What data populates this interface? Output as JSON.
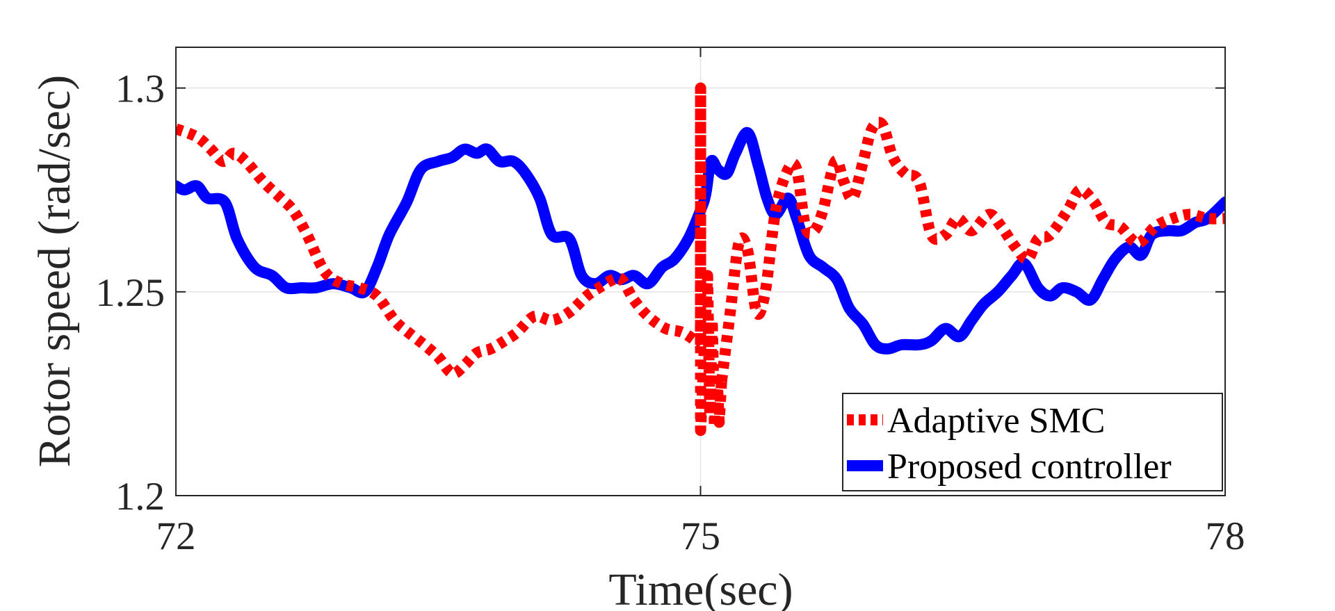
{
  "chart_data": {
    "type": "line",
    "title": "",
    "xlabel": "Time(sec)",
    "ylabel": "Rotor speed (rad/sec)",
    "xlim": [
      72,
      78
    ],
    "ylim": [
      1.2,
      1.31
    ],
    "xticks": [
      72,
      75,
      78
    ],
    "xtick_labels": [
      "72",
      "75",
      "78"
    ],
    "yticks": [
      1.2,
      1.25,
      1.3
    ],
    "ytick_labels": [
      "1.2",
      "1.25",
      "1.3"
    ],
    "grid": true,
    "legend_position": "bottom-right",
    "series": [
      {
        "name": "Adaptive SMC",
        "color": "#ff0000",
        "style": "dotted",
        "points": [
          [
            72.0,
            1.29
          ],
          [
            72.12,
            1.288
          ],
          [
            72.2,
            1.285
          ],
          [
            72.27,
            1.282
          ],
          [
            72.33,
            1.284
          ],
          [
            72.4,
            1.282
          ],
          [
            72.5,
            1.277
          ],
          [
            72.6,
            1.273
          ],
          [
            72.67,
            1.27
          ],
          [
            72.75,
            1.264
          ],
          [
            72.85,
            1.255
          ],
          [
            72.95,
            1.252
          ],
          [
            73.05,
            1.251
          ],
          [
            73.15,
            1.249
          ],
          [
            73.25,
            1.243
          ],
          [
            73.33,
            1.24
          ],
          [
            73.42,
            1.237
          ],
          [
            73.5,
            1.234
          ],
          [
            73.58,
            1.23
          ],
          [
            73.65,
            1.232
          ],
          [
            73.72,
            1.235
          ],
          [
            73.8,
            1.236
          ],
          [
            73.88,
            1.238
          ],
          [
            73.95,
            1.24
          ],
          [
            74.05,
            1.244
          ],
          [
            74.15,
            1.243
          ],
          [
            74.25,
            1.245
          ],
          [
            74.35,
            1.249
          ],
          [
            74.42,
            1.251
          ],
          [
            74.5,
            1.253
          ],
          [
            74.55,
            1.253
          ],
          [
            74.62,
            1.248
          ],
          [
            74.7,
            1.244
          ],
          [
            74.8,
            1.241
          ],
          [
            74.9,
            1.24
          ],
          [
            75.0,
            1.237
          ]
        ],
        "transient": {
          "t_start": 75.0,
          "t_end": 75.12,
          "values": [
            1.237,
            1.3,
            1.216,
            1.254,
            1.22,
            1.243,
            1.217,
            1.23,
            1.218,
            1.228
          ]
        },
        "points_after": [
          [
            75.12,
            1.228
          ],
          [
            75.17,
            1.245
          ],
          [
            75.22,
            1.262
          ],
          [
            75.27,
            1.26
          ],
          [
            75.32,
            1.245
          ],
          [
            75.37,
            1.25
          ],
          [
            75.43,
            1.27
          ],
          [
            75.5,
            1.28
          ],
          [
            75.55,
            1.28
          ],
          [
            75.6,
            1.266
          ],
          [
            75.65,
            1.265
          ],
          [
            75.7,
            1.27
          ],
          [
            75.77,
            1.282
          ],
          [
            75.82,
            1.277
          ],
          [
            75.87,
            1.273
          ],
          [
            75.93,
            1.282
          ],
          [
            75.98,
            1.29
          ],
          [
            76.04,
            1.291
          ],
          [
            76.1,
            1.283
          ],
          [
            76.17,
            1.279
          ],
          [
            76.25,
            1.277
          ],
          [
            76.32,
            1.264
          ],
          [
            76.4,
            1.264
          ],
          [
            76.47,
            1.268
          ],
          [
            76.55,
            1.265
          ],
          [
            76.65,
            1.269
          ],
          [
            76.72,
            1.266
          ],
          [
            76.8,
            1.261
          ],
          [
            76.87,
            1.258
          ],
          [
            76.93,
            1.263
          ],
          [
            77.0,
            1.264
          ],
          [
            77.1,
            1.27
          ],
          [
            77.17,
            1.275
          ],
          [
            77.25,
            1.272
          ],
          [
            77.32,
            1.267
          ],
          [
            77.4,
            1.266
          ],
          [
            77.5,
            1.262
          ],
          [
            77.6,
            1.266
          ],
          [
            77.7,
            1.268
          ],
          [
            77.8,
            1.269
          ],
          [
            77.9,
            1.268
          ],
          [
            78.0,
            1.268
          ]
        ]
      },
      {
        "name": "Proposed controller",
        "color": "#0000ff",
        "style": "solid",
        "points": [
          [
            72.0,
            1.276
          ],
          [
            72.05,
            1.275
          ],
          [
            72.12,
            1.276
          ],
          [
            72.18,
            1.273
          ],
          [
            72.28,
            1.272
          ],
          [
            72.35,
            1.263
          ],
          [
            72.45,
            1.256
          ],
          [
            72.55,
            1.254
          ],
          [
            72.63,
            1.251
          ],
          [
            72.72,
            1.251
          ],
          [
            72.8,
            1.251
          ],
          [
            72.9,
            1.252
          ],
          [
            73.0,
            1.251
          ],
          [
            73.08,
            1.25
          ],
          [
            73.15,
            1.256
          ],
          [
            73.22,
            1.264
          ],
          [
            73.32,
            1.272
          ],
          [
            73.4,
            1.28
          ],
          [
            73.5,
            1.282
          ],
          [
            73.58,
            1.283
          ],
          [
            73.65,
            1.285
          ],
          [
            73.72,
            1.284
          ],
          [
            73.78,
            1.285
          ],
          [
            73.85,
            1.282
          ],
          [
            73.93,
            1.282
          ],
          [
            74.0,
            1.279
          ],
          [
            74.08,
            1.273
          ],
          [
            74.15,
            1.264
          ],
          [
            74.25,
            1.263
          ],
          [
            74.32,
            1.254
          ],
          [
            74.4,
            1.252
          ],
          [
            74.48,
            1.254
          ],
          [
            74.55,
            1.253
          ],
          [
            74.62,
            1.254
          ],
          [
            74.7,
            1.252
          ],
          [
            74.78,
            1.256
          ],
          [
            74.85,
            1.258
          ],
          [
            74.93,
            1.263
          ],
          [
            75.0,
            1.27
          ],
          [
            75.03,
            1.274
          ],
          [
            75.06,
            1.282
          ],
          [
            75.1,
            1.28
          ],
          [
            75.15,
            1.279
          ],
          [
            75.2,
            1.284
          ],
          [
            75.27,
            1.289
          ],
          [
            75.33,
            1.281
          ],
          [
            75.38,
            1.273
          ],
          [
            75.43,
            1.269
          ],
          [
            75.5,
            1.273
          ],
          [
            75.55,
            1.268
          ],
          [
            75.62,
            1.259
          ],
          [
            75.7,
            1.256
          ],
          [
            75.78,
            1.253
          ],
          [
            75.85,
            1.246
          ],
          [
            75.93,
            1.242
          ],
          [
            76.0,
            1.237
          ],
          [
            76.07,
            1.236
          ],
          [
            76.15,
            1.237
          ],
          [
            76.25,
            1.237
          ],
          [
            76.32,
            1.238
          ],
          [
            76.4,
            1.241
          ],
          [
            76.48,
            1.239
          ],
          [
            76.55,
            1.243
          ],
          [
            76.62,
            1.247
          ],
          [
            76.7,
            1.25
          ],
          [
            76.78,
            1.254
          ],
          [
            76.85,
            1.257
          ],
          [
            76.93,
            1.251
          ],
          [
            77.0,
            1.249
          ],
          [
            77.07,
            1.251
          ],
          [
            77.15,
            1.25
          ],
          [
            77.23,
            1.248
          ],
          [
            77.3,
            1.253
          ],
          [
            77.37,
            1.258
          ],
          [
            77.45,
            1.261
          ],
          [
            77.52,
            1.259
          ],
          [
            77.58,
            1.264
          ],
          [
            77.67,
            1.265
          ],
          [
            77.75,
            1.265
          ],
          [
            77.83,
            1.267
          ],
          [
            77.9,
            1.268
          ],
          [
            78.0,
            1.272
          ]
        ]
      }
    ]
  }
}
